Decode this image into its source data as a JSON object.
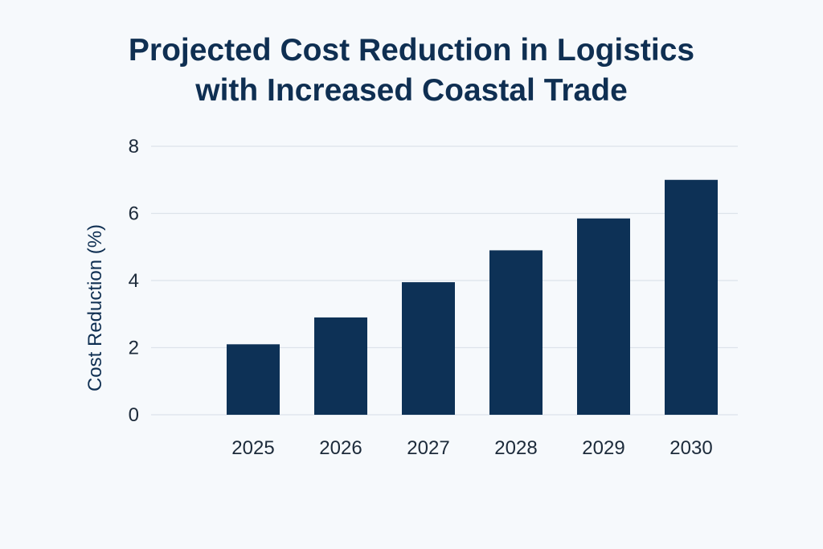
{
  "chart_data": {
    "type": "bar",
    "title_lines": [
      "Projected Cost Reduction in Logistics",
      "with Increased Coastal Trade"
    ],
    "categories": [
      "2025",
      "2026",
      "2027",
      "2028",
      "2029",
      "2030"
    ],
    "values": [
      2.1,
      2.9,
      3.95,
      4.9,
      5.85,
      7.0
    ],
    "xlabel": "",
    "ylabel": "Cost Reduction (%)",
    "ylim": [
      0,
      8
    ],
    "yticks": [
      0,
      2,
      4,
      6,
      8
    ],
    "grid": true,
    "colors": {
      "bar": "#0d3156",
      "grid": "#dde3ea",
      "background": "#f6f9fc"
    }
  }
}
